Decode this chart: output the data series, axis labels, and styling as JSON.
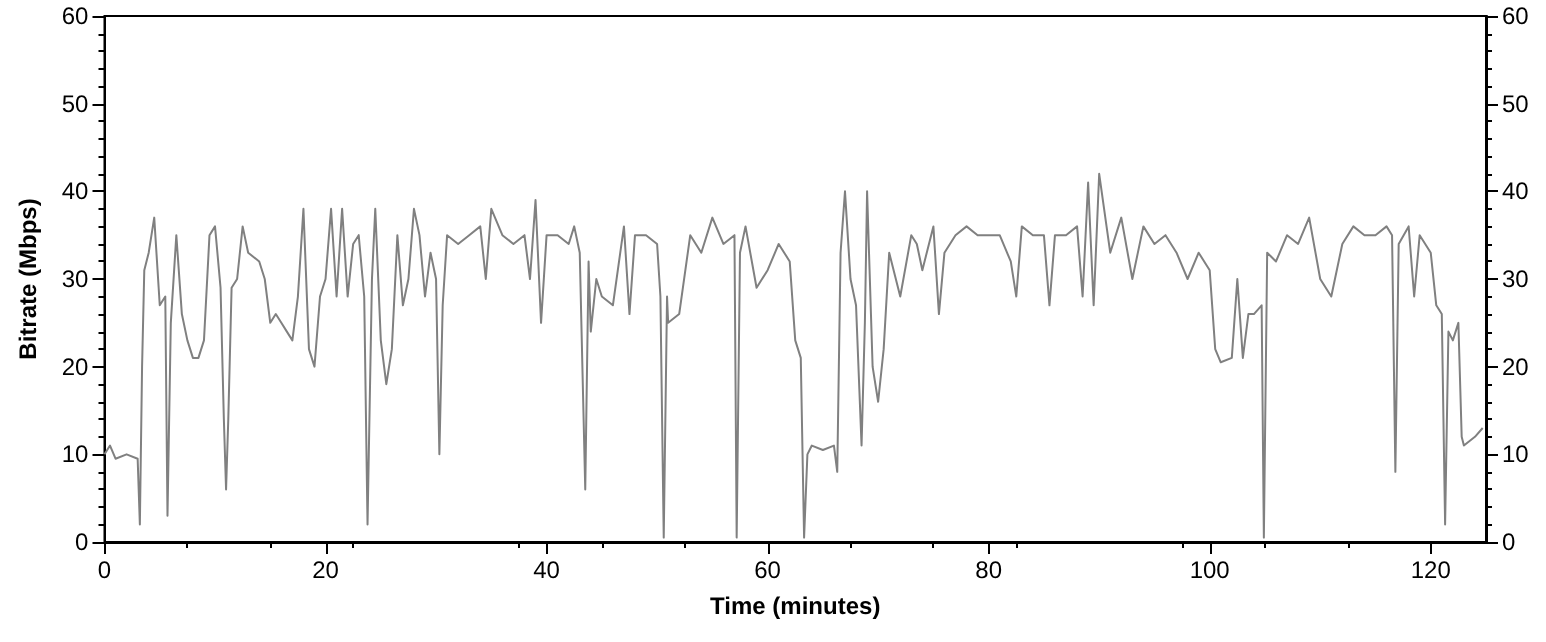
{
  "chart_data": {
    "type": "line",
    "xlabel": "Time (minutes)",
    "ylabel": "Bitrate (Mbps)",
    "xlim": [
      0,
      125
    ],
    "xticks": [
      0,
      20,
      40,
      60,
      80,
      100,
      120
    ],
    "ylim": [
      0,
      60
    ],
    "yticks": [
      0,
      10,
      20,
      30,
      40,
      50,
      60
    ],
    "y2lim": [
      0,
      60
    ],
    "y2ticks": [
      0,
      10,
      20,
      30,
      40,
      50,
      60
    ],
    "grid": false,
    "marker": "none",
    "series": [
      {
        "color": "#808080",
        "x": [
          0,
          0.5,
          1,
          2,
          3,
          3.2,
          3.4,
          3.6,
          4,
          4.5,
          5,
          5.5,
          5.7,
          6,
          6.5,
          7,
          7.5,
          8,
          8.5,
          9,
          9.5,
          10,
          10.5,
          10.8,
          11,
          11.2,
          11.5,
          12,
          12.5,
          13,
          14,
          14.5,
          15,
          15.5,
          16,
          16.5,
          17,
          17.5,
          18,
          18.5,
          19,
          19.5,
          20,
          20.5,
          21,
          21.5,
          22,
          22.5,
          23,
          23.5,
          23.8,
          24.2,
          24.5,
          25,
          25.5,
          26,
          26.5,
          27,
          27.5,
          28,
          28.5,
          29,
          29.5,
          30,
          30.3,
          30.6,
          31,
          32,
          33,
          34,
          34.5,
          35,
          36,
          37,
          38,
          38.5,
          39,
          39.5,
          40,
          41,
          42,
          42.5,
          43,
          43.5,
          43.8,
          44,
          44.5,
          45,
          46,
          47,
          47.5,
          48,
          49,
          50,
          50.3,
          50.6,
          50.9,
          51,
          52,
          53,
          54,
          55,
          56,
          57,
          57.2,
          57.5,
          58,
          59,
          60,
          61,
          62,
          62.5,
          63,
          63.3,
          63.6,
          64,
          65,
          66,
          66.3,
          66.6,
          67,
          67.5,
          68,
          68.5,
          68.8,
          69,
          69.5,
          70,
          70.5,
          71,
          72,
          73,
          73.5,
          74,
          75,
          75.5,
          76,
          77,
          78,
          79,
          80,
          81,
          82,
          82.5,
          83,
          84,
          85,
          85.5,
          86,
          87,
          88,
          88.5,
          89,
          89.5,
          90,
          91,
          92,
          93,
          94,
          95,
          96,
          97,
          98,
          99,
          100,
          100.5,
          101,
          102,
          102.5,
          103,
          103.5,
          104,
          104.7,
          104.9,
          105.2,
          106,
          107,
          108,
          109,
          110,
          111,
          112,
          113,
          114,
          115,
          116,
          116.5,
          116.8,
          117.1,
          118,
          118.5,
          119,
          120,
          120.5,
          121,
          121.3,
          121.6,
          122,
          122.5,
          122.8,
          123,
          124,
          124.7
        ],
        "values": [
          10,
          11,
          9.5,
          10,
          9.5,
          2,
          20,
          31,
          33,
          37,
          27,
          28,
          3,
          25,
          35,
          26,
          23,
          21,
          21,
          23,
          35,
          36,
          29,
          14,
          6,
          14,
          29,
          30,
          36,
          33,
          32,
          30,
          25,
          26,
          25,
          24,
          23,
          28,
          38,
          22,
          20,
          28,
          30,
          38,
          28,
          38,
          28,
          34,
          35,
          28,
          2,
          30,
          38,
          23,
          18,
          22,
          35,
          27,
          30,
          38,
          35,
          28,
          33,
          30,
          10,
          27,
          35,
          34,
          35,
          36,
          30,
          38,
          35,
          34,
          35,
          30,
          39,
          25,
          35,
          35,
          34,
          36,
          33,
          6,
          32,
          24,
          30,
          28,
          27,
          36,
          26,
          35,
          35,
          34,
          28,
          0.5,
          28,
          25,
          26,
          35,
          33,
          37,
          34,
          35,
          0.5,
          33,
          36,
          29,
          31,
          34,
          32,
          23,
          21,
          0.5,
          10,
          11,
          10.5,
          11,
          8,
          33,
          40,
          30,
          27,
          11,
          25,
          40,
          20,
          16,
          22,
          33,
          28,
          35,
          34,
          31,
          36,
          26,
          33,
          35,
          36,
          35,
          35,
          35,
          32,
          28,
          36,
          35,
          35,
          27,
          35,
          35,
          36,
          28,
          41,
          27,
          42,
          33,
          37,
          30,
          36,
          34,
          35,
          33,
          30,
          33,
          31,
          22,
          20.5,
          21,
          30,
          21,
          26,
          26,
          27,
          0.5,
          33,
          32,
          35,
          34,
          37,
          30,
          28,
          34,
          36,
          35,
          35,
          36,
          35,
          8,
          34,
          36,
          28,
          35,
          33,
          27,
          26,
          2,
          24,
          23,
          25,
          12,
          11,
          12,
          13
        ]
      }
    ]
  }
}
